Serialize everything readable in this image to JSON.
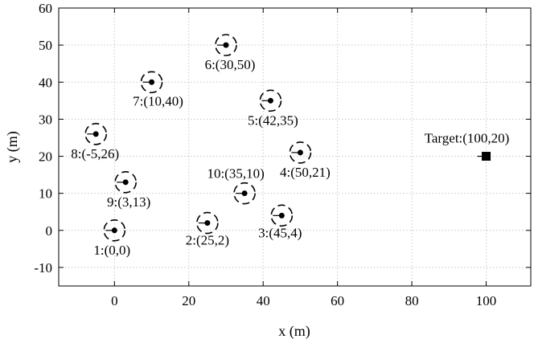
{
  "chart_data": {
    "type": "scatter",
    "xlabel": "x (m)",
    "ylabel": "y (m)",
    "xlim": [
      -15,
      112
    ],
    "ylim": [
      -15,
      60
    ],
    "x_ticks": [
      0,
      20,
      40,
      60,
      80,
      100
    ],
    "y_ticks": [
      -10,
      0,
      10,
      20,
      30,
      40,
      50,
      60
    ],
    "x_tick_labels": [
      "0",
      "20",
      "40",
      "60",
      "80",
      "100"
    ],
    "y_tick_labels": [
      "-10",
      "0",
      "10",
      "20",
      "30",
      "40",
      "50",
      "60"
    ],
    "grid": true,
    "grid_style": "dotted",
    "points": [
      {
        "id": 1,
        "x": 0,
        "y": 0,
        "label": "1:(0,0)"
      },
      {
        "id": 2,
        "x": 25,
        "y": 2,
        "label": "2:(25,2)"
      },
      {
        "id": 3,
        "x": 45,
        "y": 4,
        "label": "3:(45,4)"
      },
      {
        "id": 4,
        "x": 50,
        "y": 21,
        "label": "4:(50,21)"
      },
      {
        "id": 5,
        "x": 42,
        "y": 35,
        "label": "5:(42,35)"
      },
      {
        "id": 6,
        "x": 30,
        "y": 50,
        "label": "6:(30,50)"
      },
      {
        "id": 7,
        "x": 10,
        "y": 40,
        "label": "7:(10,40)"
      },
      {
        "id": 8,
        "x": -5,
        "y": 26,
        "label": "8:(-5,26)"
      },
      {
        "id": 9,
        "x": 3,
        "y": 13,
        "label": "9:(3,13)"
      },
      {
        "id": 10,
        "x": 35,
        "y": 10,
        "label": "10:(35,10)"
      }
    ],
    "target": {
      "x": 100,
      "y": 20,
      "label": "Target:(100,20)"
    },
    "marker_colors": {
      "point": "#000000",
      "ring": "#000000",
      "target": "#000000"
    }
  }
}
